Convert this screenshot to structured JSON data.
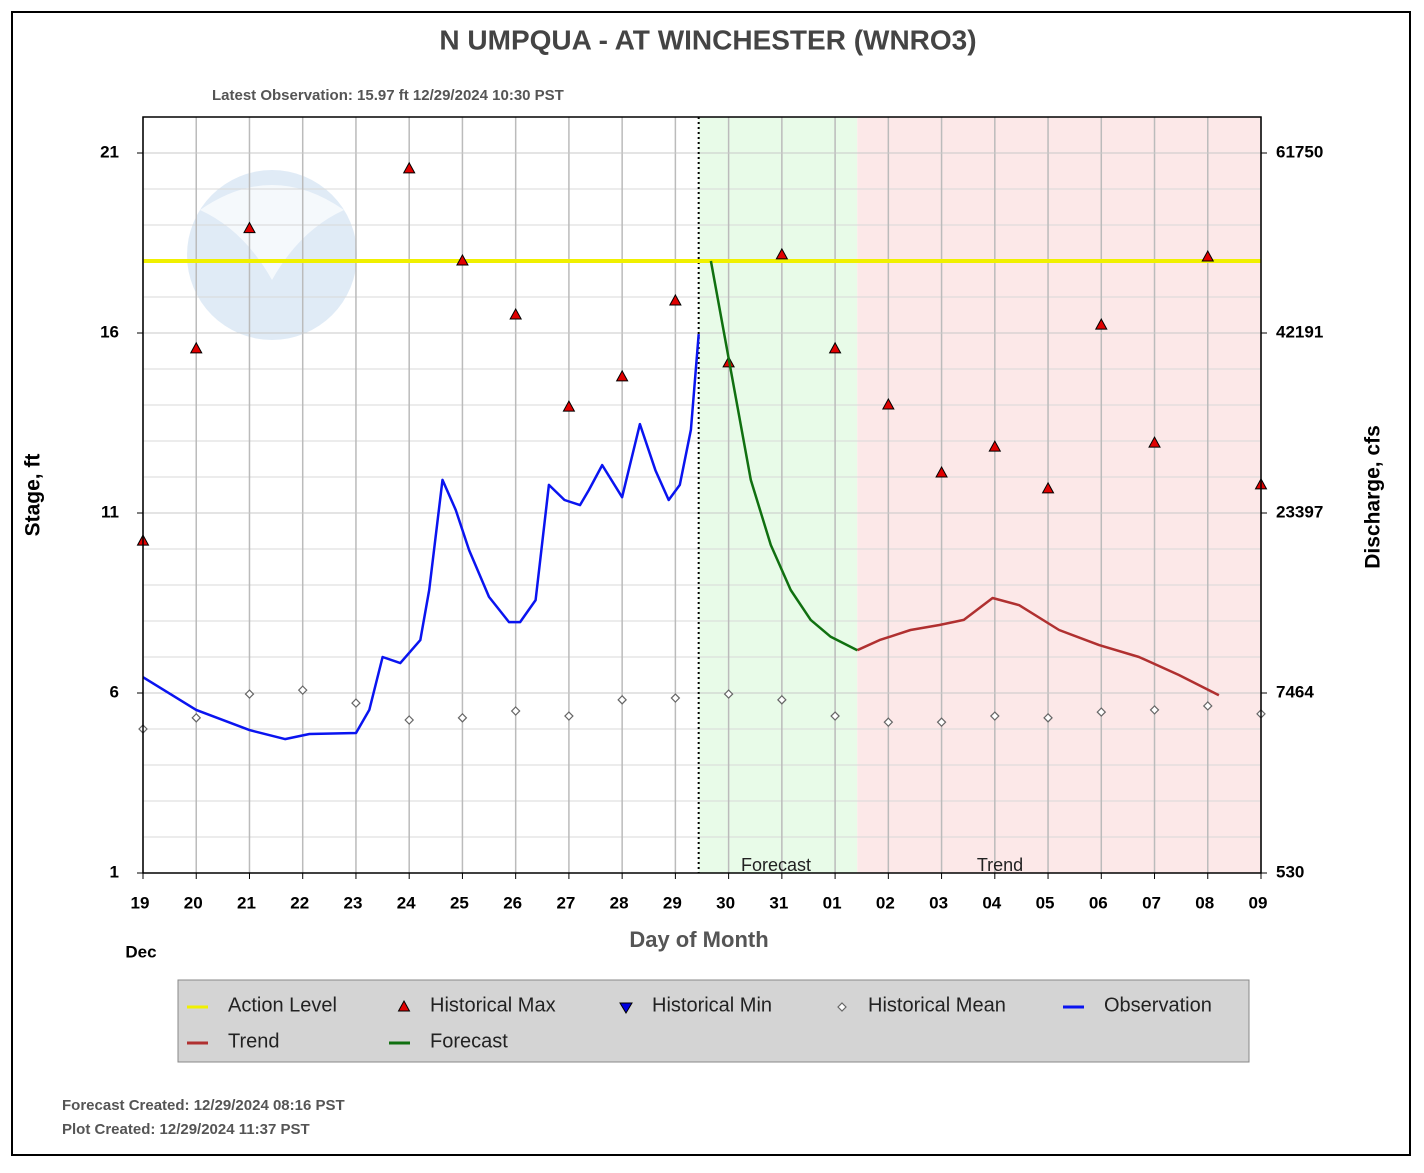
{
  "chart_data": {
    "type": "hydrograph",
    "title": "N UMPQUA - AT WINCHESTER  (WNRO3)",
    "subtitle": "Latest Observation: 15.97 ft 12/29/2024 10:30 PST",
    "y_label": "Stage, ft",
    "y2_label": "Discharge, cfs",
    "x_label": "Day of Month",
    "month_label": "Dec",
    "forecast_label": "Forecast",
    "trend_label": "Trend",
    "notes": [
      "Forecast Created: 12/29/2024 08:16 PST",
      "Plot Created: 12/29/2024 11:37 PST"
    ],
    "xlim": [
      "2024-12-19",
      "2025-01-09"
    ],
    "xticks": [
      {
        "value": "2024-12-19",
        "label": "19"
      },
      {
        "value": "2024-12-20",
        "label": "20"
      },
      {
        "value": "2024-12-21",
        "label": "21"
      },
      {
        "value": "2024-12-22",
        "label": "22"
      },
      {
        "value": "2024-12-23",
        "label": "23"
      },
      {
        "value": "2024-12-24",
        "label": "24"
      },
      {
        "value": "2024-12-25",
        "label": "25"
      },
      {
        "value": "2024-12-26",
        "label": "26"
      },
      {
        "value": "2024-12-27",
        "label": "27"
      },
      {
        "value": "2024-12-28",
        "label": "28"
      },
      {
        "value": "2024-12-29",
        "label": "29"
      },
      {
        "value": "2024-12-30",
        "label": "30"
      },
      {
        "value": "2024-12-31",
        "label": "31"
      },
      {
        "value": "2025-01-01",
        "label": "01"
      },
      {
        "value": "2025-01-02",
        "label": "02"
      },
      {
        "value": "2025-01-03",
        "label": "03"
      },
      {
        "value": "2025-01-04",
        "label": "04"
      },
      {
        "value": "2025-01-05",
        "label": "05"
      },
      {
        "value": "2025-01-06",
        "label": "06"
      },
      {
        "value": "2025-01-07",
        "label": "07"
      },
      {
        "value": "2025-01-08",
        "label": "08"
      },
      {
        "value": "2025-01-09",
        "label": "09"
      }
    ],
    "ylim": [
      1,
      22
    ],
    "yticks": [
      1,
      6,
      11,
      16,
      21
    ],
    "minor_yticks": [
      2,
      3,
      4,
      5,
      7,
      8,
      9,
      10,
      12,
      13,
      14,
      15,
      17,
      18,
      19,
      20,
      22
    ],
    "y2ticks": [
      530,
      7464,
      23397,
      42191,
      61750
    ],
    "grid": true,
    "series": [
      {
        "name": "Action Level",
        "kind": "hline",
        "color": "#f0f000",
        "values": [
          18
        ]
      },
      {
        "name": "Historical Max",
        "kind": "triangle-up",
        "color": "#e00000",
        "x": [
          "2024-12-19",
          "2024-12-20",
          "2024-12-21",
          "2024-12-22",
          "2024-12-23",
          "2024-12-24",
          "2024-12-25",
          "2024-12-26",
          "2024-12-27",
          "2024-12-28",
          "2024-12-29",
          "2024-12-30",
          "2024-12-31",
          "2025-01-01",
          "2025-01-02",
          "2025-01-03",
          "2025-01-04",
          "2025-01-05",
          "2025-01-06",
          "2025-01-07",
          "2025-01-08",
          "2025-01-09"
        ],
        "values": [
          10.22,
          15.56,
          18.9,
          null,
          null,
          20.56,
          18.0,
          16.5,
          13.94,
          14.78,
          16.89,
          15.17,
          18.17,
          15.56,
          14.0,
          12.11,
          12.83,
          11.67,
          16.22,
          12.94,
          18.11,
          11.78
        ]
      },
      {
        "name": "Historical Min",
        "kind": "triangle-down",
        "color": "#0000e0",
        "x": [
          "2024-12-19",
          "2024-12-20",
          "2024-12-21",
          "2024-12-22",
          "2024-12-23",
          "2024-12-24",
          "2024-12-25",
          "2024-12-26",
          "2024-12-27",
          "2024-12-28",
          "2024-12-29",
          "2024-12-30",
          "2024-12-31",
          "2025-01-01",
          "2025-01-02",
          "2025-01-03",
          "2025-01-04",
          "2025-01-05",
          "2025-01-06",
          "2025-01-07",
          "2025-01-08",
          "2025-01-09"
        ],
        "values": [
          null,
          null,
          null,
          null,
          null,
          null,
          null,
          null,
          null,
          null,
          null,
          null,
          null,
          null,
          null,
          null,
          null,
          null,
          null,
          null,
          null,
          null
        ]
      },
      {
        "name": "Historical Mean",
        "kind": "diamond",
        "color": "#666666",
        "x": [
          "2024-12-19",
          "2024-12-20",
          "2024-12-21",
          "2024-12-22",
          "2024-12-23",
          "2024-12-24",
          "2024-12-25",
          "2024-12-26",
          "2024-12-27",
          "2024-12-28",
          "2024-12-29",
          "2024-12-30",
          "2024-12-31",
          "2025-01-01",
          "2025-01-02",
          "2025-01-03",
          "2025-01-04",
          "2025-01-05",
          "2025-01-06",
          "2025-01-07",
          "2025-01-08",
          "2025-01-09"
        ],
        "values": [
          5.0,
          5.31,
          5.97,
          6.08,
          5.72,
          5.25,
          5.31,
          5.5,
          5.36,
          5.81,
          5.86,
          5.97,
          5.81,
          5.36,
          5.19,
          5.19,
          5.36,
          5.31,
          5.47,
          5.53,
          5.64,
          5.42
        ]
      },
      {
        "name": "Observation",
        "kind": "line",
        "color": "#0a14f0",
        "x": [
          "2024-12-19T00:00",
          "2024-12-20T00:00",
          "2024-12-21T00:00",
          "2024-12-21T16:00",
          "2024-12-22T03:00",
          "2024-12-23T00:00",
          "2024-12-23T06:00",
          "2024-12-23T12:00",
          "2024-12-23T20:00",
          "2024-12-24T05:00",
          "2024-12-24T09:00",
          "2024-12-24T15:00",
          "2024-12-24T21:00",
          "2024-12-25T03:00",
          "2024-12-25T12:00",
          "2024-12-25T21:00",
          "2024-12-26T02:00",
          "2024-12-26T09:00",
          "2024-12-26T15:00",
          "2024-12-26T22:00",
          "2024-12-27T05:00",
          "2024-12-27T09:00",
          "2024-12-27T15:00",
          "2024-12-28T00:00",
          "2024-12-28T08:00",
          "2024-12-28T15:00",
          "2024-12-28T21:00",
          "2024-12-29T02:00",
          "2024-12-29T07:00",
          "2024-12-29T10:30"
        ],
        "values": [
          6.44,
          5.53,
          4.97,
          4.72,
          4.86,
          4.89,
          5.53,
          7.0,
          6.83,
          7.47,
          8.86,
          11.92,
          11.08,
          9.97,
          8.67,
          7.97,
          7.97,
          8.58,
          11.78,
          11.36,
          11.22,
          11.64,
          12.33,
          11.44,
          13.47,
          12.19,
          11.36,
          11.78,
          13.31,
          15.97
        ]
      },
      {
        "name": "Trend",
        "kind": "line",
        "color": "#b03030",
        "x": [
          "2025-01-01T10:00",
          "2025-01-01T20:00",
          "2025-01-02T10:00",
          "2025-01-02T23:00",
          "2025-01-03T10:00",
          "2025-01-03T23:00",
          "2025-01-04T11:00",
          "2025-01-05T05:00",
          "2025-01-05T23:00",
          "2025-01-06T17:00",
          "2025-01-07T11:00",
          "2025-01-08T05:00"
        ],
        "values": [
          7.19,
          7.47,
          7.75,
          7.89,
          8.03,
          8.64,
          8.44,
          7.75,
          7.33,
          7.0,
          6.5,
          5.94
        ]
      },
      {
        "name": "Forecast",
        "kind": "line",
        "color": "#107010",
        "x": [
          "2024-12-29T16:00",
          "2024-12-30T01:00",
          "2024-12-30T10:00",
          "2024-12-30T19:00",
          "2024-12-31T04:00",
          "2024-12-31T13:00",
          "2024-12-31T22:00",
          "2025-01-01T10:00"
        ],
        "values": [
          18.0,
          14.97,
          11.92,
          10.11,
          8.86,
          8.03,
          7.56,
          7.19
        ]
      }
    ]
  }
}
